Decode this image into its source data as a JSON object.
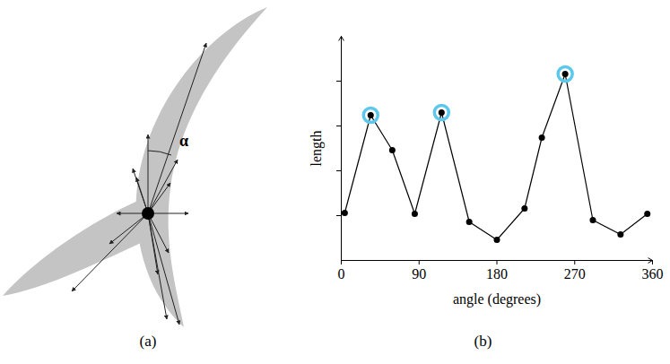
{
  "chart_data": {
    "type": "line",
    "caption": "(b)",
    "x_label": "angle (degrees)",
    "y_label": "length",
    "x": [
      4,
      34,
      59,
      85,
      116,
      148,
      180,
      212,
      232,
      259,
      291,
      323,
      354
    ],
    "values": [
      1.06,
      3.24,
      2.46,
      1.04,
      3.3,
      0.86,
      0.46,
      1.16,
      2.74,
      4.16,
      0.9,
      0.58,
      1.04
    ],
    "highlighted": [
      false,
      true,
      false,
      false,
      true,
      false,
      false,
      false,
      false,
      true,
      false,
      false,
      false
    ],
    "color": "#000000",
    "marker": "circle",
    "xlim": [
      0,
      360
    ],
    "xticks": [
      0,
      90,
      180,
      270,
      360
    ],
    "ylim": [
      0,
      5
    ],
    "yticks": [
      1,
      2,
      3,
      4
    ],
    "tick_labels": "x"
  },
  "diagram": {
    "caption": "(a)",
    "angle_label": "α"
  }
}
